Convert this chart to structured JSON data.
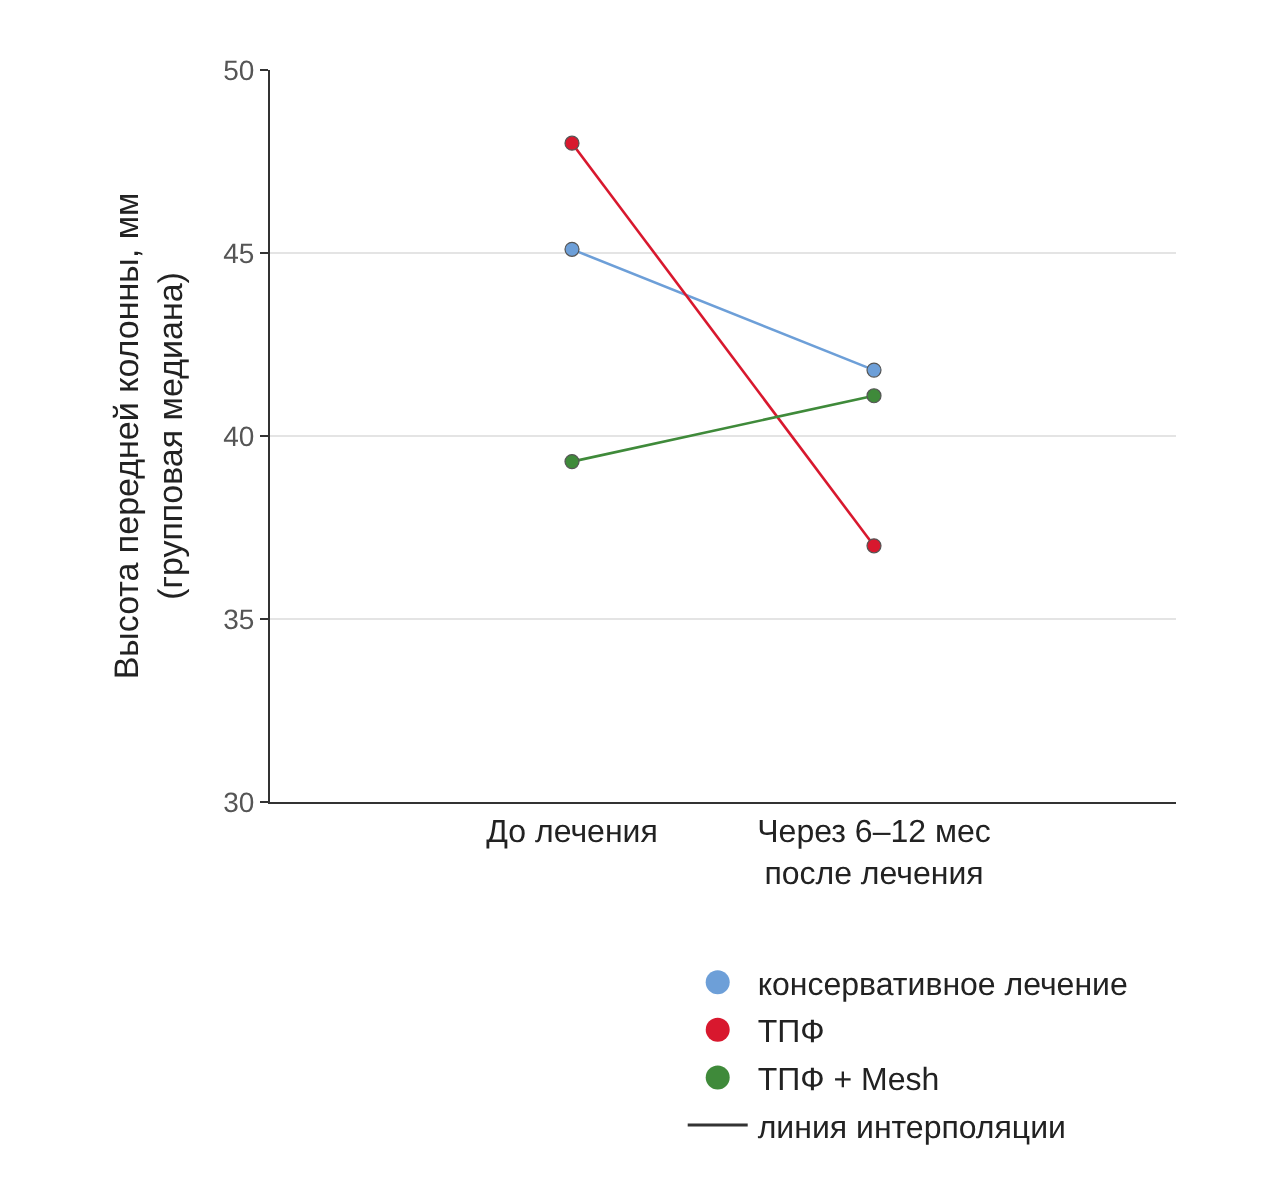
{
  "chart_data": {
    "type": "line",
    "ylabel": "Высота передней колонны, мм\n(групповая медиана)",
    "categories": [
      "До лечения",
      "Через 6–12 мес\nпосле лечения"
    ],
    "series": [
      {
        "name": "консервативное лечение",
        "color": "#6d9fd8",
        "values": [
          45.1,
          41.8
        ]
      },
      {
        "name": "ТПФ",
        "color": "#d8182e",
        "values": [
          48.0,
          37.0
        ]
      },
      {
        "name": "ТПФ + Mesh",
        "color": "#3f8a3a",
        "values": [
          39.3,
          41.1
        ]
      }
    ],
    "annotations": [
      "линия интерполяции"
    ],
    "ylim": [
      30,
      50
    ],
    "yticks": [
      30,
      35,
      40,
      45,
      50
    ],
    "grid": "y",
    "marker": "circle",
    "line_style": "solid",
    "legend": "bottom"
  }
}
